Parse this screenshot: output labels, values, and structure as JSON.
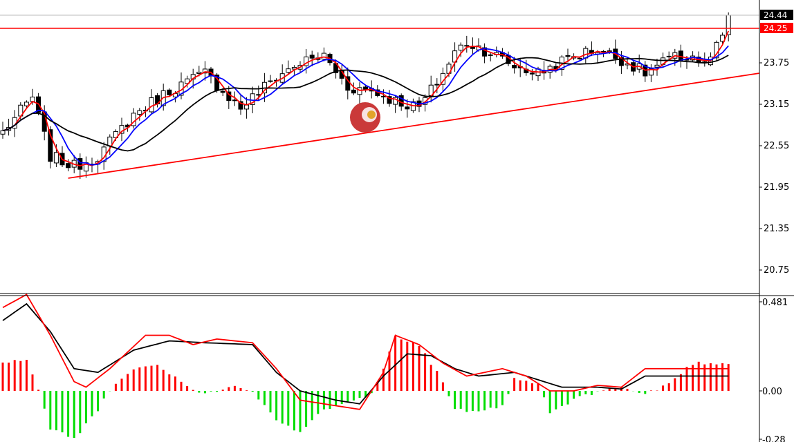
{
  "chart_data": [
    {
      "type": "candlestick",
      "panel": "price",
      "y_axis": {
        "ticks": [
          "23.75",
          "23.15",
          "22.55",
          "21.95",
          "21.35",
          "20.75"
        ],
        "tick_values": [
          23.75,
          23.15,
          22.55,
          21.95,
          21.35,
          20.75
        ],
        "ylim": [
          20.5,
          24.62
        ]
      },
      "n_bars": 70,
      "anchor_close": [
        [
          0,
          22.75
        ],
        [
          5,
          23.25
        ],
        [
          8,
          22.4
        ],
        [
          12,
          22.25
        ],
        [
          16,
          22.4
        ],
        [
          22,
          23.0
        ],
        [
          28,
          23.35
        ],
        [
          34,
          23.6
        ],
        [
          40,
          23.1
        ],
        [
          46,
          23.55
        ],
        [
          50,
          23.75
        ],
        [
          54,
          23.85
        ],
        [
          58,
          23.4
        ],
        [
          62,
          23.35
        ],
        [
          66,
          23.2
        ],
        [
          70,
          23.1
        ],
        [
          74,
          23.6
        ],
        [
          76,
          23.9
        ],
        [
          78,
          24.05
        ],
        [
          82,
          23.9
        ],
        [
          86,
          23.7
        ],
        [
          90,
          23.6
        ],
        [
          96,
          23.85
        ],
        [
          100,
          23.95
        ],
        [
          104,
          23.8
        ],
        [
          108,
          23.6
        ],
        [
          112,
          23.8
        ],
        [
          116,
          23.85
        ],
        [
          118,
          23.7
        ],
        [
          121,
          24.1
        ],
        [
          122,
          24.44
        ]
      ],
      "current_price": {
        "label": "24.44",
        "value": 24.44
      },
      "resistance": {
        "label": "24.25",
        "value": 24.25,
        "color": "#ff0000"
      },
      "trendline": {
        "from": {
          "bar": 11,
          "value": 22.08
        },
        "to": {
          "bar": 122,
          "value": 23.6
        },
        "color": "#ff0000"
      },
      "moving_averages": [
        {
          "period": 3,
          "color": "#ff0000"
        },
        {
          "period": 6,
          "color": "#0000ff"
        },
        {
          "period": 15,
          "color": "#000000"
        }
      ],
      "colors": {
        "candle": "#000000",
        "grid": "#c8c8c8"
      }
    },
    {
      "type": "macd",
      "panel": "indicator",
      "y_axis": {
        "ticks": [
          "0.481",
          "0.00",
          "-0.28"
        ],
        "tick_values": [
          0.481,
          0.0,
          -0.28
        ],
        "ylim": [
          -0.3,
          0.5
        ]
      },
      "anchor_histogram": [
        [
          0,
          0.15
        ],
        [
          4,
          0.17
        ],
        [
          6,
          0.0
        ],
        [
          8,
          -0.2
        ],
        [
          12,
          -0.26
        ],
        [
          16,
          -0.1
        ],
        [
          18,
          0.0
        ],
        [
          22,
          0.12
        ],
        [
          26,
          0.14
        ],
        [
          30,
          0.05
        ],
        [
          34,
          -0.02
        ],
        [
          36,
          0.0
        ],
        [
          38,
          0.03
        ],
        [
          42,
          0.0
        ],
        [
          46,
          -0.15
        ],
        [
          50,
          -0.23
        ],
        [
          54,
          -0.1
        ],
        [
          58,
          -0.05
        ],
        [
          62,
          -0.02
        ],
        [
          64,
          0.12
        ],
        [
          66,
          0.3
        ],
        [
          70,
          0.25
        ],
        [
          74,
          0.05
        ],
        [
          76,
          -0.1
        ],
        [
          80,
          -0.12
        ],
        [
          84,
          -0.08
        ],
        [
          86,
          0.06
        ],
        [
          90,
          0.04
        ],
        [
          92,
          -0.12
        ],
        [
          96,
          -0.05
        ],
        [
          100,
          0.0
        ],
        [
          104,
          0.02
        ],
        [
          108,
          -0.02
        ],
        [
          112,
          0.04
        ],
        [
          116,
          0.15
        ]
      ],
      "anchor_signal_red": [
        [
          0,
          0.45
        ],
        [
          4,
          0.52
        ],
        [
          8,
          0.3
        ],
        [
          12,
          0.05
        ],
        [
          14,
          0.02
        ],
        [
          18,
          0.12
        ],
        [
          24,
          0.3
        ],
        [
          28,
          0.3
        ],
        [
          32,
          0.25
        ],
        [
          36,
          0.28
        ],
        [
          42,
          0.26
        ],
        [
          46,
          0.12
        ],
        [
          50,
          -0.05
        ],
        [
          56,
          -0.08
        ],
        [
          60,
          -0.1
        ],
        [
          64,
          0.1
        ],
        [
          66,
          0.3
        ],
        [
          70,
          0.25
        ],
        [
          74,
          0.15
        ],
        [
          78,
          0.08
        ],
        [
          84,
          0.12
        ],
        [
          88,
          0.08
        ],
        [
          92,
          0.0
        ],
        [
          96,
          0.0
        ],
        [
          100,
          0.03
        ],
        [
          104,
          0.02
        ],
        [
          108,
          0.12
        ]
      ],
      "anchor_signal_black": [
        [
          0,
          0.38
        ],
        [
          4,
          0.47
        ],
        [
          8,
          0.32
        ],
        [
          12,
          0.12
        ],
        [
          16,
          0.1
        ],
        [
          22,
          0.22
        ],
        [
          28,
          0.27
        ],
        [
          34,
          0.26
        ],
        [
          42,
          0.25
        ],
        [
          46,
          0.1
        ],
        [
          50,
          0.0
        ],
        [
          56,
          -0.05
        ],
        [
          60,
          -0.07
        ],
        [
          64,
          0.08
        ],
        [
          68,
          0.2
        ],
        [
          72,
          0.19
        ],
        [
          76,
          0.12
        ],
        [
          80,
          0.08
        ],
        [
          86,
          0.1
        ],
        [
          90,
          0.06
        ],
        [
          94,
          0.02
        ],
        [
          100,
          0.02
        ],
        [
          104,
          0.01
        ],
        [
          108,
          0.08
        ]
      ],
      "colors": {
        "positive": "#ff0000",
        "negative": "#00dd00",
        "fast_line": "#ff0000",
        "slow_line": "#000000"
      }
    }
  ]
}
